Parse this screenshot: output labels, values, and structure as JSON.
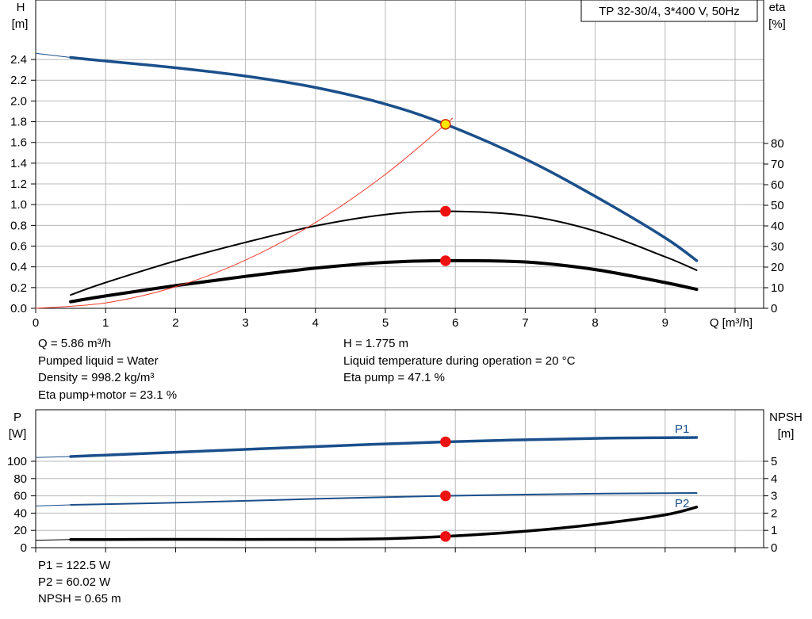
{
  "chart_data": [
    {
      "type": "line",
      "title": "TP 32-30/4, 3*400 V, 50Hz",
      "xlabel": "Q [m³/h]",
      "ylabel_left": [
        "H",
        "[m]"
      ],
      "ylabel_right": [
        "eta",
        "[%]"
      ],
      "xlim": [
        0,
        10
      ],
      "ylim_left": [
        0,
        2.5
      ],
      "ylim_right": [
        0,
        100
      ],
      "x_ticks": [
        "0",
        "1",
        "2",
        "3",
        "4",
        "5",
        "6",
        "7",
        "8",
        "9"
      ],
      "y_ticks_left": [
        "0.0",
        "0.2",
        "0.4",
        "0.6",
        "0.8",
        "1.0",
        "1.2",
        "1.4",
        "1.6",
        "1.8",
        "2.0",
        "2.2",
        "2.4"
      ],
      "y_ticks_right": [
        "0",
        "10",
        "20",
        "30",
        "40",
        "50",
        "60",
        "70",
        "80"
      ],
      "grid": true,
      "series": [
        {
          "axis": "left",
          "color": "#1a4f8b",
          "width": 3.5,
          "x": [
            0.5,
            1,
            2,
            3,
            4,
            5,
            5.86,
            7,
            8,
            9,
            9.45
          ],
          "y": [
            2.42,
            2.385,
            2.32,
            2.24,
            2.13,
            1.97,
            1.775,
            1.44,
            1.08,
            0.68,
            0.46
          ]
        },
        {
          "axis": "left",
          "color": "#1a4f8b",
          "width": 1,
          "extension": true,
          "x": [
            0,
            0.5
          ],
          "y": [
            2.46,
            2.42
          ]
        },
        {
          "axis": "right",
          "color": "#000000",
          "width": 2,
          "x": [
            0.5,
            1,
            2,
            3,
            4,
            5,
            5.86,
            7,
            8,
            9,
            9.45
          ],
          "y": [
            6.5,
            12.5,
            23,
            32,
            40,
            45.5,
            47.1,
            45,
            37.5,
            25,
            18.5
          ]
        },
        {
          "axis": "right",
          "color": "#000000",
          "width": 4,
          "x": [
            0.5,
            1,
            2,
            3,
            4,
            5,
            5.86,
            7,
            8,
            9,
            9.45
          ],
          "y": [
            3.2,
            6,
            11,
            15.5,
            19.5,
            22.3,
            23.1,
            22.5,
            18.8,
            12.5,
            9.2
          ]
        },
        {
          "axis": "left",
          "color": "#f03a2a",
          "width": 1,
          "x": [
            0,
            1,
            2,
            3,
            4,
            5,
            5.86,
            5.95
          ],
          "y": [
            0,
            0.052,
            0.207,
            0.465,
            0.827,
            1.292,
            1.775,
            1.83
          ]
        }
      ],
      "markers": [
        {
          "axis": "left",
          "x": 5.86,
          "y": 1.775,
          "fill": "#ffe800",
          "stroke": "#cc2a00"
        },
        {
          "axis": "right",
          "x": 5.86,
          "y": 47.1,
          "fill": "#ee1111",
          "stroke": "#ee1111"
        },
        {
          "axis": "right",
          "x": 5.86,
          "y": 23.1,
          "fill": "#ee1111",
          "stroke": "#ee1111"
        }
      ]
    },
    {
      "type": "line",
      "xlim": [
        0,
        10
      ],
      "ylabel_left": [
        "P",
        "[W]"
      ],
      "ylabel_right": [
        "NPSH",
        "[m]"
      ],
      "ylim_left": [
        0,
        140
      ],
      "ylim_right": [
        0,
        7
      ],
      "y_ticks_left": [
        "0",
        "20",
        "40",
        "60",
        "80",
        "100"
      ],
      "y_ticks_right": [
        "0",
        "1",
        "2",
        "3",
        "4",
        "5"
      ],
      "grid": true,
      "series": [
        {
          "name": "P1",
          "axis": "left",
          "color": "#1a4f8b",
          "width": 3.5,
          "x": [
            0.5,
            2,
            4,
            5.86,
            8,
            9.45
          ],
          "y": [
            105.5,
            110.5,
            117,
            122.5,
            126.5,
            127.5
          ]
        },
        {
          "axis": "left",
          "color": "#1a4f8b",
          "width": 1,
          "extension": true,
          "x": [
            0,
            0.5
          ],
          "y": [
            104.3,
            105.5
          ]
        },
        {
          "axis": "left",
          "color": "#1a4f8b",
          "width": 2,
          "x": [
            0.5,
            2,
            4,
            5.86,
            8,
            9.45
          ],
          "y": [
            49.5,
            52,
            56.5,
            60.02,
            62.5,
            63.3
          ]
        },
        {
          "axis": "left",
          "color": "#1a4f8b",
          "width": 1,
          "extension": true,
          "x": [
            0,
            0.5
          ],
          "y": [
            48.3,
            49.5
          ]
        },
        {
          "name": "P2",
          "axis": "right",
          "color": "#000000",
          "width": 3.5,
          "x": [
            0.5,
            2,
            4,
            5,
            5.86,
            7,
            8,
            9,
            9.45
          ],
          "y": [
            0.47,
            0.48,
            0.48,
            0.52,
            0.65,
            0.95,
            1.35,
            1.9,
            2.35
          ]
        },
        {
          "axis": "right",
          "color": "#000000",
          "width": 1,
          "extension": true,
          "x": [
            0,
            0.5
          ],
          "y": [
            0.43,
            0.47
          ]
        }
      ],
      "markers": [
        {
          "axis": "left",
          "x": 5.86,
          "y": 122.5,
          "fill": "#ee1111",
          "stroke": "#ee1111"
        },
        {
          "axis": "left",
          "x": 5.86,
          "y": 60.02,
          "fill": "#ee1111",
          "stroke": "#ee1111"
        },
        {
          "axis": "right",
          "x": 5.86,
          "y": 0.65,
          "fill": "#ee1111",
          "stroke": "#ee1111"
        }
      ]
    }
  ],
  "info_top": {
    "q": "Q = 5.86 m³/h",
    "liquid": "Pumped liquid = Water",
    "density": "Density = 998.2 kg/m³",
    "eta_total": "Eta pump+motor = 23.1 %",
    "h": "H = 1.775 m",
    "temp": "Liquid temperature during operation = 20 °C",
    "eta_pump": "Eta pump = 47.1 %"
  },
  "info_bottom": {
    "p1": "P1 = 122.5 W",
    "p2": "P2 = 60.02 W",
    "npsh": "NPSH = 0.65 m"
  }
}
